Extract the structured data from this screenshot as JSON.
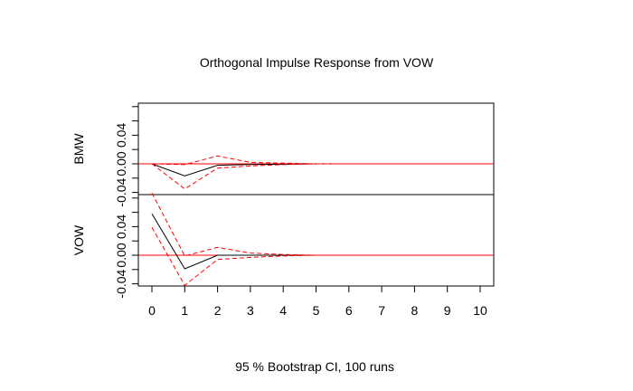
{
  "chart_data": {
    "type": "line",
    "title": "Orthogonal Impulse Response from VOW",
    "xlabel": "95 % Bootstrap CI,  100 runs",
    "x_ticks": [
      "0",
      "1",
      "2",
      "3",
      "4",
      "5",
      "6",
      "7",
      "8",
      "9",
      "10"
    ],
    "xlim": [
      0,
      10
    ],
    "colors": {
      "response": "#000000",
      "ci": "#ff0000",
      "zero": "#ff0000"
    },
    "panels": [
      {
        "ylabel": "BMW",
        "ylim": [
          -0.06,
          0.08
        ],
        "y_ticks": [
          "-0.04",
          "0.00",
          "0.04"
        ],
        "y_tick_values": [
          -0.04,
          0.0,
          0.04
        ],
        "x": [
          0,
          1,
          2,
          3,
          4,
          5,
          5.5
        ],
        "series": [
          {
            "role": "response",
            "values": [
              0.0,
              -0.017,
              -0.002,
              -0.001,
              -0.0005,
              0.0,
              0.0
            ]
          },
          {
            "role": "ci_upper",
            "values": [
              0.0,
              -0.001,
              0.011,
              0.002,
              0.001,
              0.0,
              0.0
            ]
          },
          {
            "role": "ci_lower",
            "values": [
              0.0,
              -0.035,
              -0.006,
              -0.003,
              -0.001,
              0.0,
              0.0
            ]
          }
        ]
      },
      {
        "ylabel": "VOW",
        "ylim": [
          -0.06,
          0.08
        ],
        "y_ticks": [
          "-0.04",
          "0.00",
          "0.04"
        ],
        "y_tick_values": [
          -0.04,
          0.0,
          0.04
        ],
        "x": [
          0,
          1,
          2,
          3,
          4,
          5,
          5.5
        ],
        "series": [
          {
            "role": "response",
            "values": [
              0.058,
              -0.019,
              0.0,
              0.0,
              0.0,
              0.0,
              0.0
            ]
          },
          {
            "role": "ci_upper",
            "values": [
              0.087,
              -0.001,
              0.011,
              0.003,
              0.001,
              0.0,
              0.0
            ]
          },
          {
            "role": "ci_lower",
            "values": [
              0.039,
              -0.042,
              -0.006,
              -0.003,
              -0.001,
              0.0,
              0.0
            ]
          }
        ]
      }
    ]
  }
}
